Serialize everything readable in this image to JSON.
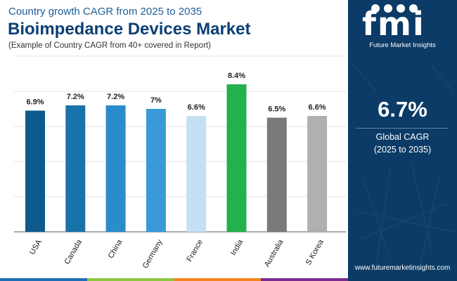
{
  "header": {
    "subtitle": "Country growth CAGR from 2025 to 2035",
    "title": "Bioimpedance Devices Market",
    "note": "(Example of Country CAGR from 40+ covered in Report)"
  },
  "chart_data": {
    "type": "bar",
    "categories": [
      "USA",
      "Canada",
      "China",
      "Germany",
      "France",
      "India",
      "Australia",
      "S Korea"
    ],
    "values": [
      6.9,
      7.2,
      7.2,
      7.0,
      6.6,
      8.4,
      6.5,
      6.6
    ],
    "data_labels": [
      "6.9%",
      "7.2%",
      "7.2%",
      "7%",
      "6.6%",
      "8.4%",
      "6.5%",
      "6.6%"
    ],
    "colors": [
      "#0d5a8c",
      "#1a72aa",
      "#2a8ccb",
      "#3a9ad9",
      "#c4e0f3",
      "#22b14c",
      "#7a7a7a",
      "#b0b0b0"
    ],
    "ylim": [
      0,
      10
    ],
    "grid": true,
    "legend": "none"
  },
  "panel": {
    "logo_text": "fmi",
    "logo_subtitle": "Future Market Insights",
    "kpi_value": "6.7%",
    "kpi_label": "Global CAGR",
    "kpi_period": "(2025 to 2035)",
    "website": "www.futuremarketinsights.com",
    "background": "#0b3b66"
  },
  "footer": {
    "colors": [
      "#1e6fb5",
      "#8dc63f",
      "#f58220",
      "#7b2d8e"
    ]
  }
}
